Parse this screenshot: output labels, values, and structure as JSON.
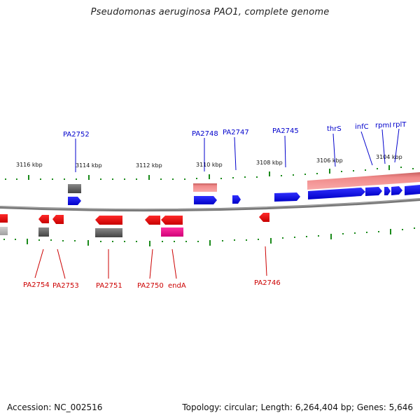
{
  "title": "Pseudomonas aeruginosa PAO1, complete genome",
  "footer": {
    "accession": "Accession: NC_002516",
    "topology": "Topology: circular; Length: 6,264,404 bp; Genes: 5,646"
  },
  "scale_labels": [
    "3116 kbp",
    "3114 kbp",
    "3112 kbp",
    "3110 kbp",
    "3108 kbp",
    "3106 kbp",
    "3104 kbp"
  ],
  "colors": {
    "forward_gene": "#0000ee",
    "reverse_gene": "#ee0000",
    "forward_label": "#0000cc",
    "reverse_label": "#cc0000",
    "rna_forward": "#f08080",
    "rna_reverse": "#e6007e",
    "pseudo": "#666666",
    "tick": "#1a8a1a",
    "backbone": "#777777"
  },
  "forward_labels": [
    "PA2752",
    "PA2748",
    "PA2747",
    "PA2745",
    "thrS",
    "infC",
    "rpmI",
    "rplT"
  ],
  "reverse_labels": [
    "PA2754",
    "PA2753",
    "PA2751",
    "PA2750",
    "endA",
    "PA2746"
  ]
}
